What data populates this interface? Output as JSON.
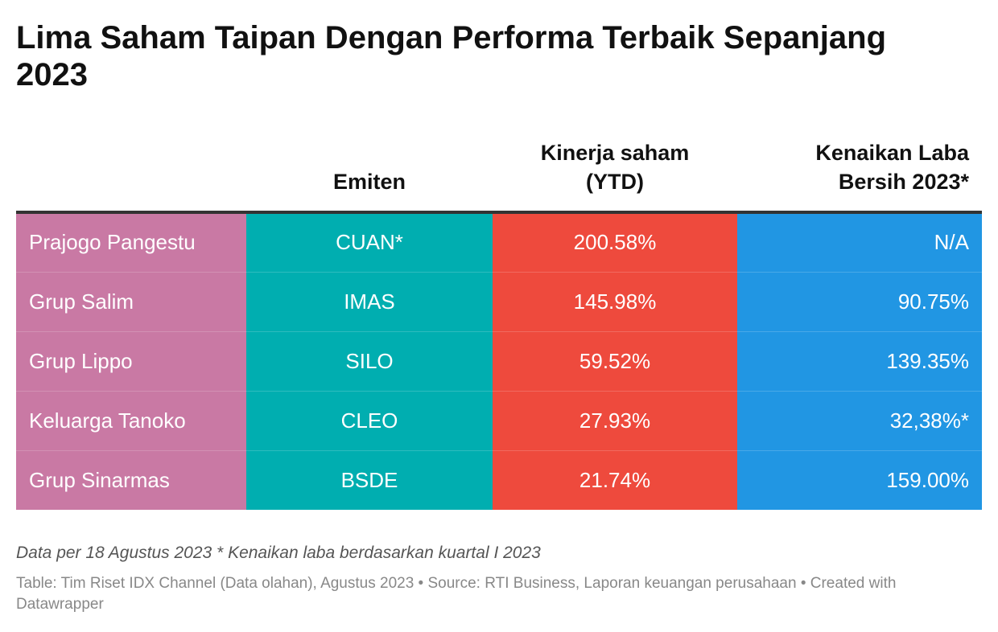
{
  "title": "Lima Saham Taipan Dengan Performa Terbaik Sepanjang 2023",
  "colors": {
    "taipan": "#c979a4",
    "emiten": "#00aeb0",
    "kinerja": "#ee4a3d",
    "laba": "#2196e3",
    "header_rule": "#333333"
  },
  "chart_data": {
    "type": "table",
    "title": "Lima Saham Taipan Dengan Performa Terbaik Sepanjang 2023",
    "columns": [
      "",
      "Emiten",
      "Kinerja saham (YTD)",
      "Kenaikan Laba Bersih 2023*"
    ],
    "header": {
      "c1": "",
      "c2": "Emiten",
      "c3_line1": "Kinerja saham",
      "c3_line2": "(YTD)",
      "c4_line1": "Kenaikan Laba",
      "c4_line2": "Bersih 2023*"
    },
    "rows": [
      {
        "taipan": "Prajogo Pangestu",
        "emiten": "CUAN*",
        "kinerja": "200.58%",
        "laba": "N/A"
      },
      {
        "taipan": "Grup Salim",
        "emiten": "IMAS",
        "kinerja": "145.98%",
        "laba": "90.75%"
      },
      {
        "taipan": "Grup Lippo",
        "emiten": "SILO",
        "kinerja": "59.52%",
        "laba": "139.35%"
      },
      {
        "taipan": "Keluarga Tanoko",
        "emiten": "CLEO",
        "kinerja": "27.93%",
        "laba": "32,38%*"
      },
      {
        "taipan": "Grup Sinarmas",
        "emiten": "BSDE",
        "kinerja": "21.74%",
        "laba": "159.00%"
      }
    ]
  },
  "notes": "Data per 18 Agustus 2023 * Kenaikan laba berdasarkan kuartal I 2023",
  "footer": "Table: Tim Riset IDX Channel (Data olahan), Agustus 2023 • Source: RTI Business, Laporan keuangan perusahaan • Created with Datawrapper"
}
